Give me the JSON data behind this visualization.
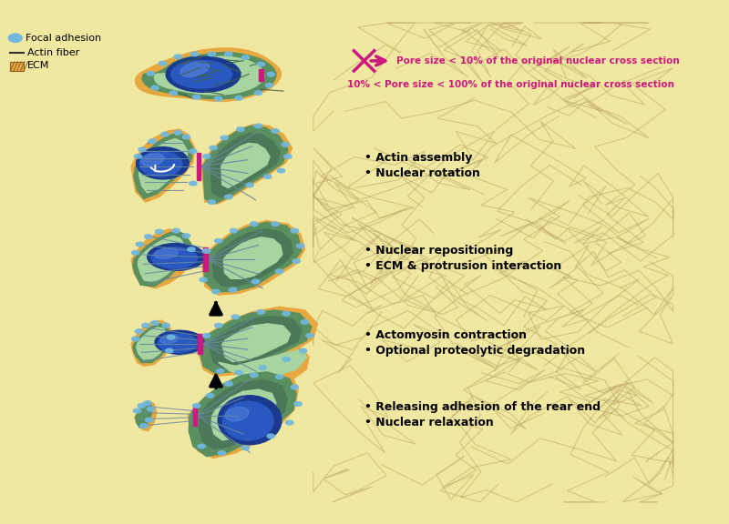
{
  "bg_color": "#F0E8A0",
  "ecm_color": "#E8A840",
  "green_dark": "#5A9060",
  "green_mid": "#7AB880",
  "green_light": "#A8D4A0",
  "green_grad": "#C8E8B0",
  "nucleus_dark": "#1A3A90",
  "nucleus_mid": "#2858C0",
  "nucleus_light": "#5080D8",
  "nucleus_shine": "#88B0F0",
  "pink": "#CC1880",
  "fiber_color": "#8090A0",
  "fa_color": "#70B8E0",
  "ecm_fiber_color": "#C8A840",
  "pore_label1": "Pore size < 10% of the original nuclear cross section",
  "pore_label2": "10% < Pore size < 100% of the original nuclear cross section",
  "step_labels": [
    [
      "• Actin assembly",
      "• Nuclear rotation"
    ],
    [
      "• Nuclear repositioning",
      "• ECM & protrusion interaction"
    ],
    [
      "• Actomyosin contraction",
      "• Optional proteolytic degradation"
    ],
    [
      "• Releasing adhesion of the rear end",
      "• Nuclear relaxation"
    ]
  ]
}
